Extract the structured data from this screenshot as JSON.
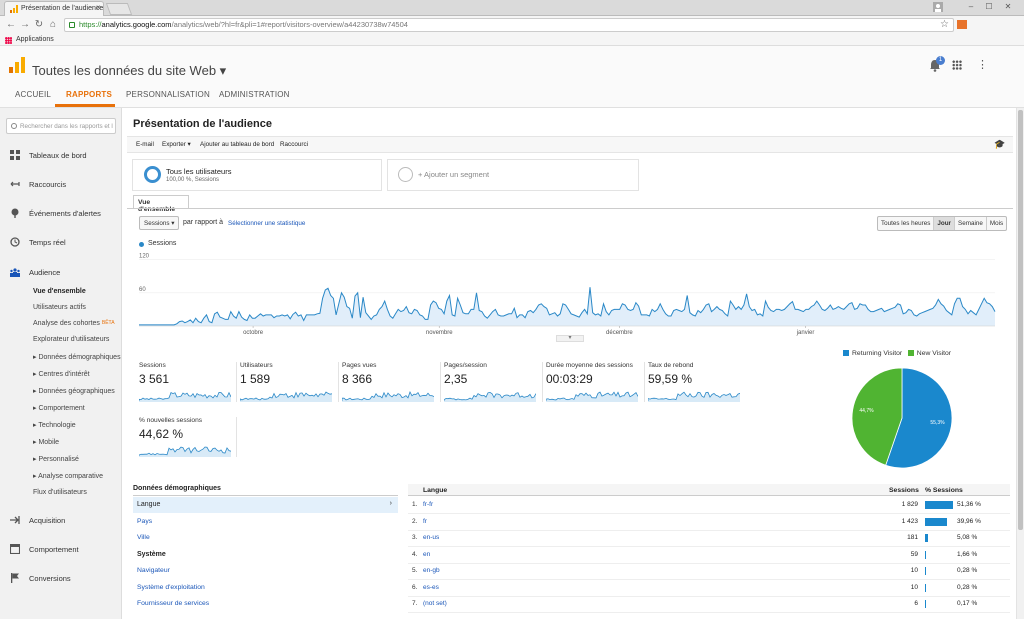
{
  "browser": {
    "tab_title": "Présentation de l'audience",
    "url_proto": "https://",
    "url_host": "analytics.google.com",
    "url_path": "/analytics/web/?hl=fr&pli=1#report/visitors-overview/a44230738w74504",
    "bookmark": "Applications",
    "close_glyph": "×",
    "back_glyph": "←",
    "forward_glyph": "→",
    "reload_glyph": "↻",
    "home_glyph": "⌂",
    "star_glyph": "☆",
    "min_glyph": "–",
    "max_glyph": "☐",
    "win_close_glyph": "✕"
  },
  "header": {
    "site_name": "Toutes les données du site Web ▾",
    "notification_count": "1",
    "kebab_glyph": "⋮"
  },
  "nav": {
    "tabs": [
      "ACCUEIL",
      "RAPPORTS",
      "PERSONNALISATION",
      "ADMINISTRATION"
    ],
    "active_index": 1
  },
  "sidebar": {
    "search_placeholder": "Rechercher dans les rapports et l",
    "items": [
      {
        "label": "Tableaux de bord",
        "icon": "dashboard-icon"
      },
      {
        "label": "Raccourcis",
        "icon": "shortcut-icon"
      },
      {
        "label": "Événements d'alertes",
        "icon": "alert-icon"
      },
      {
        "label": "Temps réel",
        "icon": "clock-icon"
      },
      {
        "label": "Audience",
        "icon": "people-icon"
      }
    ],
    "audience_subitems": {
      "overview": "Vue d'ensemble",
      "active_users": "Utilisateurs actifs",
      "cohorts": "Analyse des cohortes",
      "cohorts_badge": "BÊTA",
      "explorer": "Explorateur d'utilisateurs",
      "groups": [
        "Données démographiques",
        "Centres d'intérêt",
        "Données géographiques",
        "Comportement",
        "Technologie",
        "Mobile",
        "Personnalisé",
        "Analyse comparative"
      ],
      "flow": "Flux d'utilisateurs"
    },
    "bottom_items": [
      {
        "label": "Acquisition",
        "icon": "acquisition-icon"
      },
      {
        "label": "Comportement",
        "icon": "behavior-icon"
      },
      {
        "label": "Conversions",
        "icon": "flag-icon"
      }
    ]
  },
  "page": {
    "title": "Présentation de l'audience",
    "actions": [
      "E-mail",
      "Exporter ▾",
      "Ajouter au tableau de bord",
      "Raccourci"
    ],
    "segment1_name": "Tous les utilisateurs",
    "segment1_sub": "100,00 %, Sessions",
    "segment2_name": "+ Ajouter un segment",
    "overview_tab": "Vue d'ensemble",
    "metric_select": "Sessions ▾",
    "compare_label": "par rapport à",
    "select_stat": "Sélectionner une statistique",
    "time_buttons": [
      "Toutes les heures",
      "Jour",
      "Semaine",
      "Mois"
    ],
    "time_active": 1,
    "handle_glyph": "▾"
  },
  "chart_data": {
    "type": "area",
    "series": [
      {
        "name": "Sessions",
        "color": "#2a88c7"
      }
    ],
    "ytick_labels": [
      "120",
      "60"
    ],
    "yticks": [
      120,
      60
    ],
    "ylim": [
      0,
      130
    ],
    "x_labels": [
      {
        "label": "octobre",
        "index": 19
      },
      {
        "label": "novembre",
        "index": 50
      },
      {
        "label": "décembre",
        "index": 80
      },
      {
        "label": "janvier",
        "index": 111
      }
    ],
    "values": [
      2,
      2,
      2,
      2,
      2,
      2,
      2,
      2,
      2,
      2,
      2,
      2,
      2,
      2,
      4,
      8,
      9,
      6,
      8,
      11,
      6,
      14,
      8,
      6,
      14,
      20,
      8,
      6,
      22,
      25,
      16,
      14,
      12,
      12,
      26,
      18,
      14,
      26,
      16,
      12,
      10,
      20,
      14,
      14,
      18,
      22,
      18,
      20,
      20,
      20,
      15,
      18,
      18,
      20,
      18,
      20,
      13,
      21,
      25,
      18,
      20,
      10,
      20,
      20,
      20,
      20,
      22,
      23,
      50,
      65,
      68,
      55,
      50,
      20,
      40,
      60,
      52,
      35,
      32,
      14,
      54,
      60,
      15,
      52,
      24,
      18,
      12,
      18,
      20,
      30,
      35,
      45,
      30,
      18,
      14,
      22,
      30,
      26,
      28,
      35,
      24,
      22,
      30,
      28,
      20,
      18,
      12,
      12,
      38,
      45,
      42,
      32,
      30,
      22,
      45,
      55,
      20,
      18,
      50,
      38,
      24,
      22,
      22,
      30,
      30,
      60,
      28,
      26,
      18,
      14,
      20,
      26,
      30,
      20,
      18,
      18,
      20,
      22,
      22,
      32,
      15,
      20,
      20,
      15,
      26,
      28,
      24,
      30,
      38,
      40,
      35,
      32,
      20,
      22,
      24,
      18,
      22,
      40,
      38,
      30,
      22,
      20,
      18,
      16,
      24,
      30,
      22,
      70,
      24,
      20,
      22,
      18,
      40,
      26,
      20,
      28,
      30,
      30,
      30,
      40,
      38,
      30,
      28,
      30,
      42,
      36,
      20,
      20,
      20,
      18,
      30,
      26,
      30,
      40,
      30,
      22,
      18,
      18,
      28,
      30,
      28,
      26,
      30,
      55,
      24,
      20,
      18,
      28,
      24,
      30,
      38,
      40,
      26,
      30,
      35,
      30,
      28,
      22,
      18,
      45,
      38,
      30,
      35,
      30,
      38,
      58,
      35,
      28,
      30,
      20,
      22,
      18,
      45,
      34,
      28,
      26,
      30,
      30,
      28,
      30,
      35,
      40,
      44,
      30,
      30,
      28,
      26,
      30,
      30,
      35,
      38,
      45,
      38,
      30,
      28,
      32,
      38,
      30,
      32,
      35,
      32,
      30,
      35,
      40,
      42,
      30,
      32,
      40,
      38,
      38,
      30,
      26,
      26,
      28,
      30,
      32,
      26,
      28,
      30,
      32,
      34,
      40,
      38,
      22,
      24,
      30,
      28,
      20,
      18,
      22,
      24,
      26,
      28,
      30,
      32,
      38,
      48,
      40,
      36,
      28,
      24,
      20,
      40,
      50,
      50,
      35,
      30,
      22,
      28,
      24,
      20,
      30,
      40,
      50,
      42,
      40,
      35,
      26
    ]
  },
  "scorecards": [
    {
      "label": "Sessions",
      "value": "3 561"
    },
    {
      "label": "Utilisateurs",
      "value": "1 589"
    },
    {
      "label": "Pages vues",
      "value": "8 366"
    },
    {
      "label": "Pages/session",
      "value": "2,35"
    },
    {
      "label": "Durée moyenne des sessions",
      "value": "00:03:29"
    },
    {
      "label": "Taux de rebond",
      "value": "59,59 %"
    },
    {
      "label": "% nouvelles sessions",
      "value": "44,62 %"
    }
  ],
  "pie": {
    "series": [
      {
        "name": "Returning Visitor",
        "value": 55.3,
        "label": "55,3%",
        "color": "#1a88cd"
      },
      {
        "name": "New Visitor",
        "value": 44.7,
        "label": "44,7%",
        "color": "#50b432"
      }
    ]
  },
  "demographics": {
    "header": "Données démographiques",
    "selected": "Langue",
    "selected_arrow": "›",
    "links": [
      "Pays",
      "Ville"
    ],
    "system_header": "Système",
    "system_links": [
      "Navigateur",
      "Système d'exploitation",
      "Fournisseur de services"
    ]
  },
  "language_table": {
    "col_language": "Langue",
    "col_sessions": "Sessions",
    "col_pct": "% Sessions",
    "rows": [
      {
        "rank": "1.",
        "lang": "fr-fr",
        "sessions": "1 829",
        "pct": "51,36 %",
        "share": 51.36
      },
      {
        "rank": "2.",
        "lang": "fr",
        "sessions": "1 423",
        "pct": "39,96 %",
        "share": 39.96
      },
      {
        "rank": "3.",
        "lang": "en-us",
        "sessions": "181",
        "pct": "5,08 %",
        "share": 5.08
      },
      {
        "rank": "4.",
        "lang": "en",
        "sessions": "59",
        "pct": "1,66 %",
        "share": 1.66
      },
      {
        "rank": "5.",
        "lang": "en-gb",
        "sessions": "10",
        "pct": "0,28 %",
        "share": 0.28
      },
      {
        "rank": "6.",
        "lang": "es-es",
        "sessions": "10",
        "pct": "0,28 %",
        "share": 0.28
      },
      {
        "rank": "7.",
        "lang": "(not set)",
        "sessions": "6",
        "pct": "0,17 %",
        "share": 0.17
      }
    ]
  }
}
